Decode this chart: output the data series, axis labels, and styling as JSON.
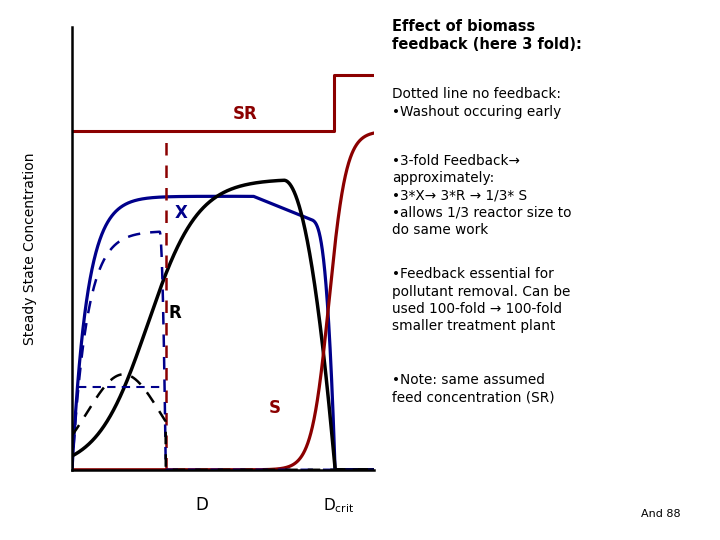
{
  "ylabel": "Steady State Concentration",
  "bg_color": "#ffffff",
  "plot_bg": "#ffffff",
  "text_color": "#000000",
  "color_red": "#8B0000",
  "color_blue": "#00008B",
  "color_black": "#000000",
  "label_SR": "SR",
  "label_X": "X",
  "label_R": "R",
  "label_S": "S",
  "D_crit": 0.87,
  "D_crit_nofb": 0.31,
  "SR_level": 0.78,
  "SR_step_up": 0.13
}
